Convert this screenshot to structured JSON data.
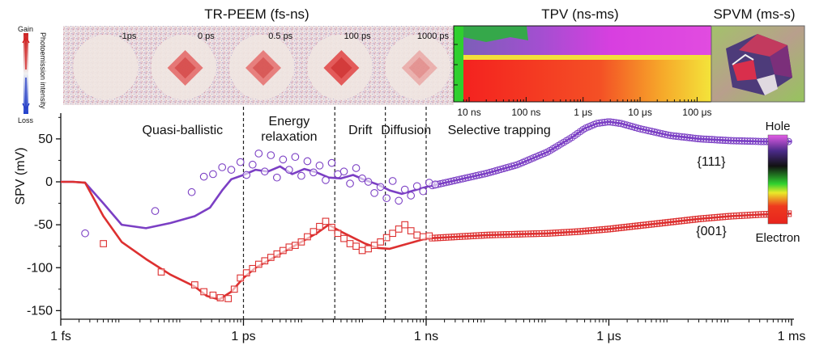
{
  "headers": {
    "trpeem": "TR-PEEM (fs-ns)",
    "tpv": "TPV (ns-ms)",
    "spvm": "SPVM (ms-s)"
  },
  "peem_panels": [
    "-1ps",
    "0 ps",
    "0.5 ps",
    "100 ps",
    "1000 ps"
  ],
  "peem_colorbar": {
    "top": "Gain",
    "bottom": "Loss",
    "label": "Photoemission intensity"
  },
  "tpv_ticks": [
    "10 ns",
    "100 ns",
    "1 μs",
    "10 μs",
    "100 μs"
  ],
  "regions": [
    "Quasi-ballistic",
    "Energy\nrelaxation",
    "Drift",
    "Diffusion",
    "Selective  trapping"
  ],
  "spv_colorbar": {
    "top": "Hole",
    "bottom": "Electron"
  },
  "colors": {
    "facet111": "#7b3fc4",
    "facet001": "#dd3030"
  },
  "chart_data": {
    "type": "scatter",
    "xscale": "log",
    "xlim": [
      "1 fs",
      "1 ms"
    ],
    "x_tick_labels": [
      "1 fs",
      "1 ps",
      "1 ns",
      "1 μs",
      "1 ms"
    ],
    "ylabel": "SPV (mV)",
    "ylim": [
      -160,
      80
    ],
    "y_ticks": [
      50,
      0,
      -50,
      -100,
      -150
    ],
    "dividers_log10_s": [
      -12,
      -10.5,
      -9.67,
      -9.0
    ],
    "series": [
      {
        "name": "{111}",
        "color": "#7b3fc4",
        "line": {
          "log10_t": [
            -15,
            -14.8,
            -14.6,
            -14.3,
            -14.0,
            -13.6,
            -13.2,
            -12.8,
            -12.55,
            -12.35,
            -12.2,
            -12.0,
            -11.8,
            -11.6,
            -11.4,
            -11.2,
            -11.0,
            -10.8,
            -10.6,
            -10.4,
            -10.2,
            -10.0,
            -9.8,
            -9.6,
            -9.4,
            -9.2,
            -9.0,
            -8.5,
            -8.0,
            -7.5,
            -7.0,
            -6.6,
            -6.4,
            -6.2,
            -6.0,
            -5.8,
            -5.5,
            -5.0,
            -4.5,
            -4.0,
            -3.5,
            -3.0
          ],
          "spv_mV": [
            0,
            0,
            -1,
            -25,
            -50,
            -54,
            -48,
            -40,
            -30,
            -10,
            3,
            8,
            14,
            12,
            18,
            9,
            15,
            11,
            5,
            4,
            8,
            2,
            -3,
            -10,
            -14,
            -10,
            -6,
            2,
            10,
            20,
            35,
            52,
            62,
            68,
            70,
            68,
            62,
            54,
            50,
            48,
            47,
            47
          ]
        },
        "markers": {
          "log10_t": [
            -14.6,
            -13.45,
            -12.85,
            -12.65,
            -12.5,
            -12.35,
            -12.2,
            -12.05,
            -11.95,
            -11.85,
            -11.75,
            -11.65,
            -11.55,
            -11.45,
            -11.35,
            -11.25,
            -11.15,
            -11.05,
            -10.95,
            -10.85,
            -10.75,
            -10.65,
            -10.55,
            -10.45,
            -10.35,
            -10.25,
            -10.15,
            -10.05,
            -9.95,
            -9.85,
            -9.75,
            -9.65,
            -9.55,
            -9.45,
            -9.35,
            -9.25,
            -9.15,
            -9.05,
            -8.95,
            -8.85
          ],
          "spv_mV": [
            -60,
            -34,
            -12,
            6,
            9,
            17,
            14,
            23,
            8,
            20,
            33,
            12,
            31,
            5,
            26,
            14,
            29,
            7,
            24,
            11,
            19,
            2,
            22,
            9,
            12,
            -2,
            16,
            4,
            0,
            -13,
            -6,
            -19,
            1,
            -22,
            -9,
            -16,
            -5,
            -11,
            -1,
            -3
          ]
        }
      },
      {
        "name": "{001}",
        "color": "#dd3030",
        "line": {
          "log10_t": [
            -15,
            -14.8,
            -14.6,
            -14.3,
            -14.0,
            -13.6,
            -13.2,
            -12.8,
            -12.6,
            -12.4,
            -12.2,
            -12.0,
            -11.8,
            -11.6,
            -11.4,
            -11.2,
            -11.0,
            -10.8,
            -10.6,
            -10.4,
            -10.2,
            -10.0,
            -9.8,
            -9.6,
            -9.4,
            -9.2,
            -9.0,
            -8.5,
            -8.0,
            -7.5,
            -7.0,
            -6.5,
            -6.0,
            -5.5,
            -5.0,
            -4.5,
            -4.0,
            -3.5,
            -3.0
          ],
          "spv_mV": [
            0,
            0,
            -1,
            -40,
            -70,
            -90,
            -108,
            -122,
            -133,
            -137,
            -128,
            -112,
            -100,
            -92,
            -84,
            -76,
            -68,
            -60,
            -50,
            -58,
            -65,
            -72,
            -77,
            -78,
            -74,
            -70,
            -66,
            -64,
            -62,
            -61,
            -60,
            -58,
            -55,
            -51,
            -47,
            -43,
            -40,
            -38,
            -37
          ]
        },
        "markers": {
          "log10_t": [
            -14.3,
            -13.35,
            -12.8,
            -12.65,
            -12.5,
            -12.38,
            -12.25,
            -12.15,
            -12.05,
            -11.95,
            -11.85,
            -11.75,
            -11.65,
            -11.55,
            -11.45,
            -11.35,
            -11.25,
            -11.15,
            -11.05,
            -10.95,
            -10.85,
            -10.75,
            -10.65,
            -10.55,
            -10.45,
            -10.35,
            -10.25,
            -10.15,
            -10.05,
            -9.95,
            -9.85,
            -9.75,
            -9.65,
            -9.55,
            -9.45,
            -9.35,
            -9.25,
            -9.15,
            -9.05,
            -8.95
          ],
          "spv_mV": [
            -72,
            -105,
            -120,
            -128,
            -132,
            -135,
            -136,
            -125,
            -112,
            -106,
            -101,
            -96,
            -92,
            -88,
            -84,
            -80,
            -76,
            -74,
            -70,
            -64,
            -58,
            -52,
            -46,
            -53,
            -60,
            -66,
            -72,
            -75,
            -80,
            -78,
            -74,
            -70,
            -65,
            -60,
            -55,
            -50,
            -57,
            -62,
            -64,
            -63
          ]
        }
      }
    ]
  }
}
